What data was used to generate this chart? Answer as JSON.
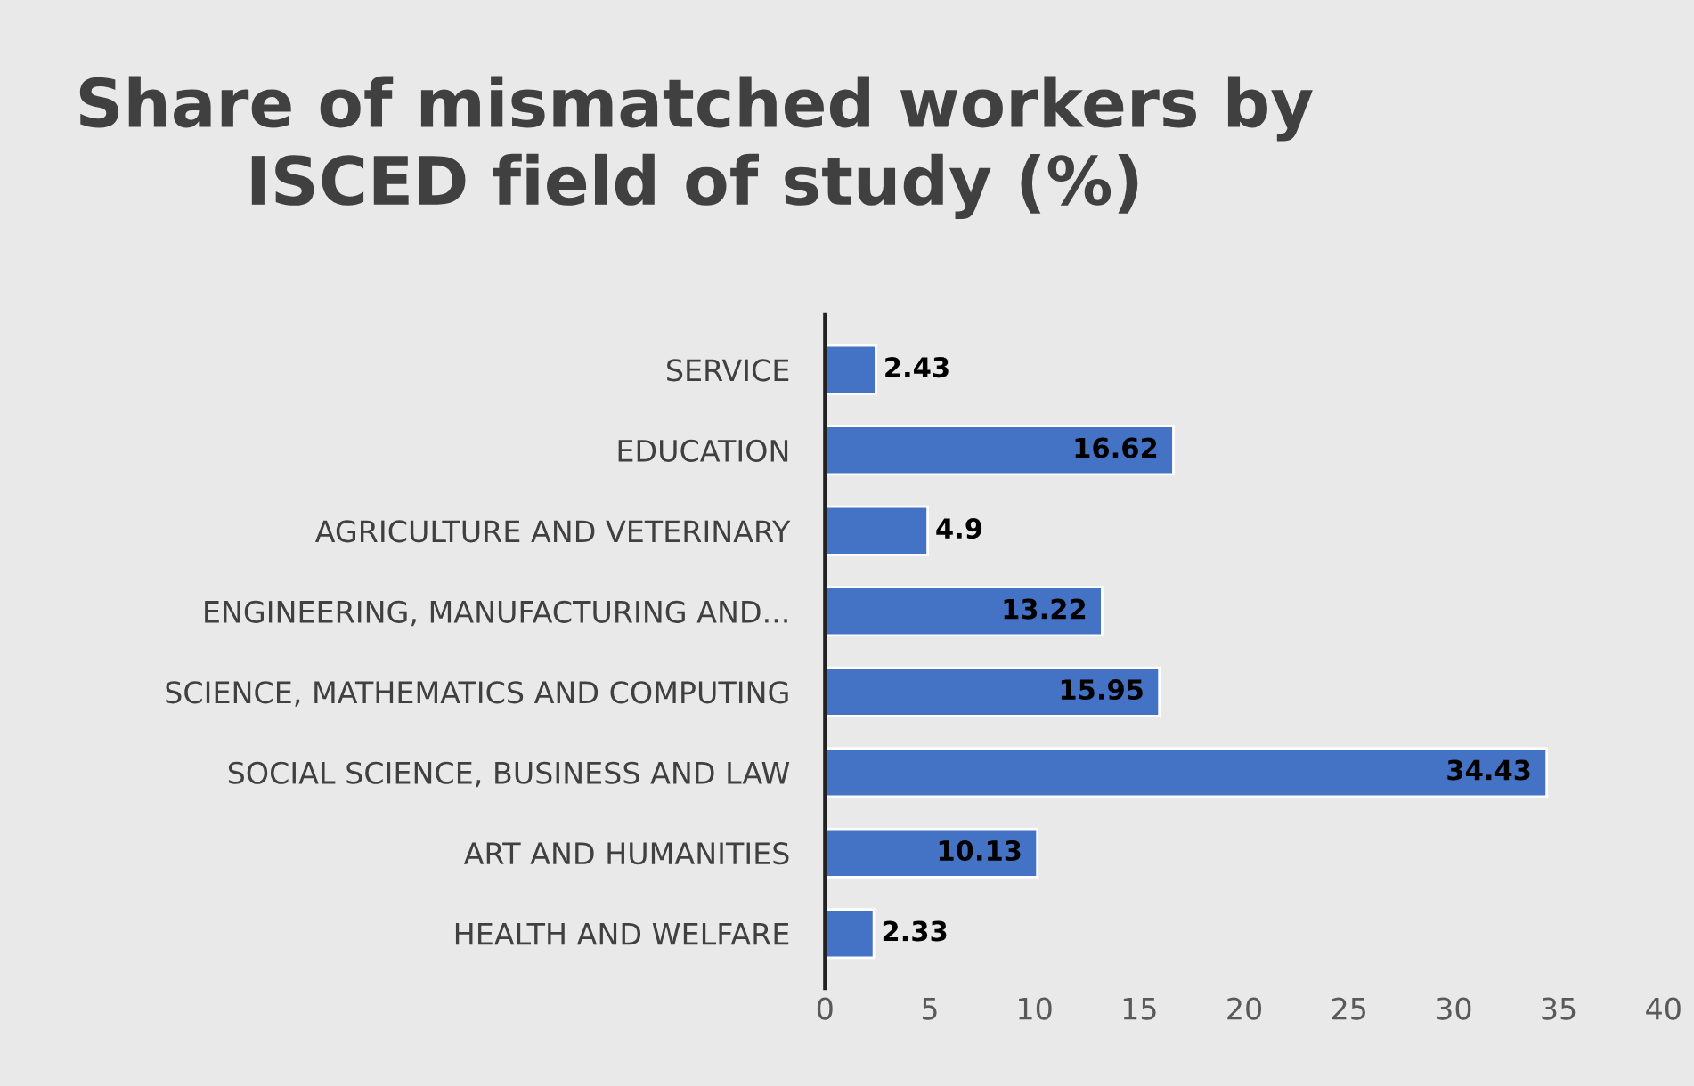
{
  "chart_data": {
    "type": "bar",
    "orientation": "horizontal",
    "title": "Share of mismatched workers by\nISCED field of study (%)",
    "categories": [
      "SERVICE",
      "EDUCATION",
      "AGRICULTURE AND VETERINARY",
      "ENGINEERING, MANUFACTURING AND...",
      "SCIENCE, MATHEMATICS AND COMPUTING",
      "SOCIAL SCIENCE, BUSINESS AND LAW",
      "ART AND HUMANITIES",
      "HEALTH AND WELFARE"
    ],
    "values": [
      2.43,
      16.62,
      4.9,
      13.22,
      15.95,
      34.43,
      10.13,
      2.33
    ],
    "color": "#4472c4",
    "data_labels": true,
    "grid": false,
    "legend": false,
    "xlim": [
      0,
      40
    ],
    "xticks": [
      0,
      5,
      10,
      15,
      20,
      25,
      30,
      35,
      40
    ]
  }
}
